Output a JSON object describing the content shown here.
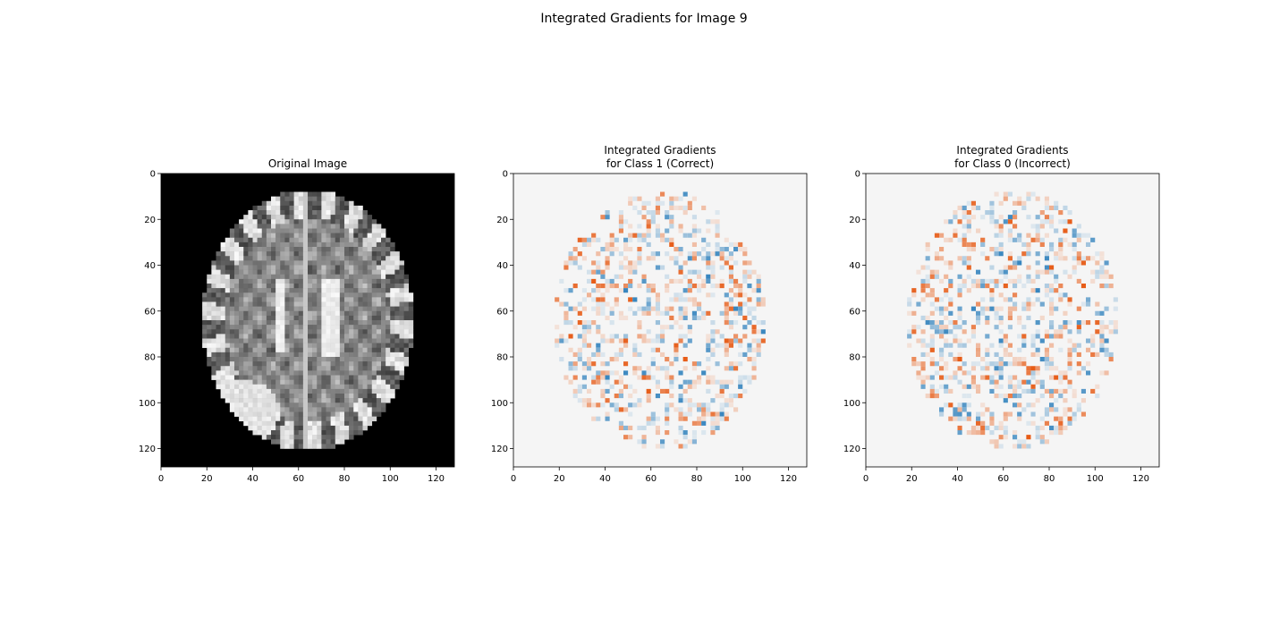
{
  "figure": {
    "suptitle": "Integrated Gradients for Image 9"
  },
  "chart_data": [
    {
      "type": "heatmap",
      "colormap": "gray",
      "title_lines": [
        "Original Image"
      ],
      "xlim": [
        0,
        128
      ],
      "ylim": [
        128,
        0
      ],
      "xticks": [
        0,
        20,
        40,
        60,
        80,
        100,
        120
      ],
      "yticks": [
        0,
        20,
        40,
        60,
        80,
        100,
        120
      ],
      "content": "axial brain MRI slice (128x128) with bright lesion in lower-left posterior region"
    },
    {
      "type": "heatmap",
      "colormap": "RdBu_r",
      "title_lines": [
        "Integrated Gradients",
        " for Class 1 (Correct)"
      ],
      "xlim": [
        0,
        128
      ],
      "ylim": [
        128,
        0
      ],
      "xticks": [
        0,
        20,
        40,
        60,
        80,
        100,
        120
      ],
      "yticks": [
        0,
        20,
        40,
        60,
        80,
        100,
        120
      ],
      "content": "sparse red/blue attribution speckle over brain region, near-white background"
    },
    {
      "type": "heatmap",
      "colormap": "RdBu_r",
      "title_lines": [
        "Integrated Gradients",
        " for Class 0 (Incorrect)"
      ],
      "xlim": [
        0,
        128
      ],
      "ylim": [
        128,
        0
      ],
      "xticks": [
        0,
        20,
        40,
        60,
        80,
        100,
        120
      ],
      "yticks": [
        0,
        20,
        40,
        60,
        80,
        100,
        120
      ],
      "content": "sparse red/blue attribution speckle over brain region, near-white background"
    }
  ],
  "colors": {
    "background": "#000000",
    "attr_bg": "#f5f5f5",
    "positive": "#e6550d",
    "negative": "#3182bd",
    "axis": "#000000"
  }
}
